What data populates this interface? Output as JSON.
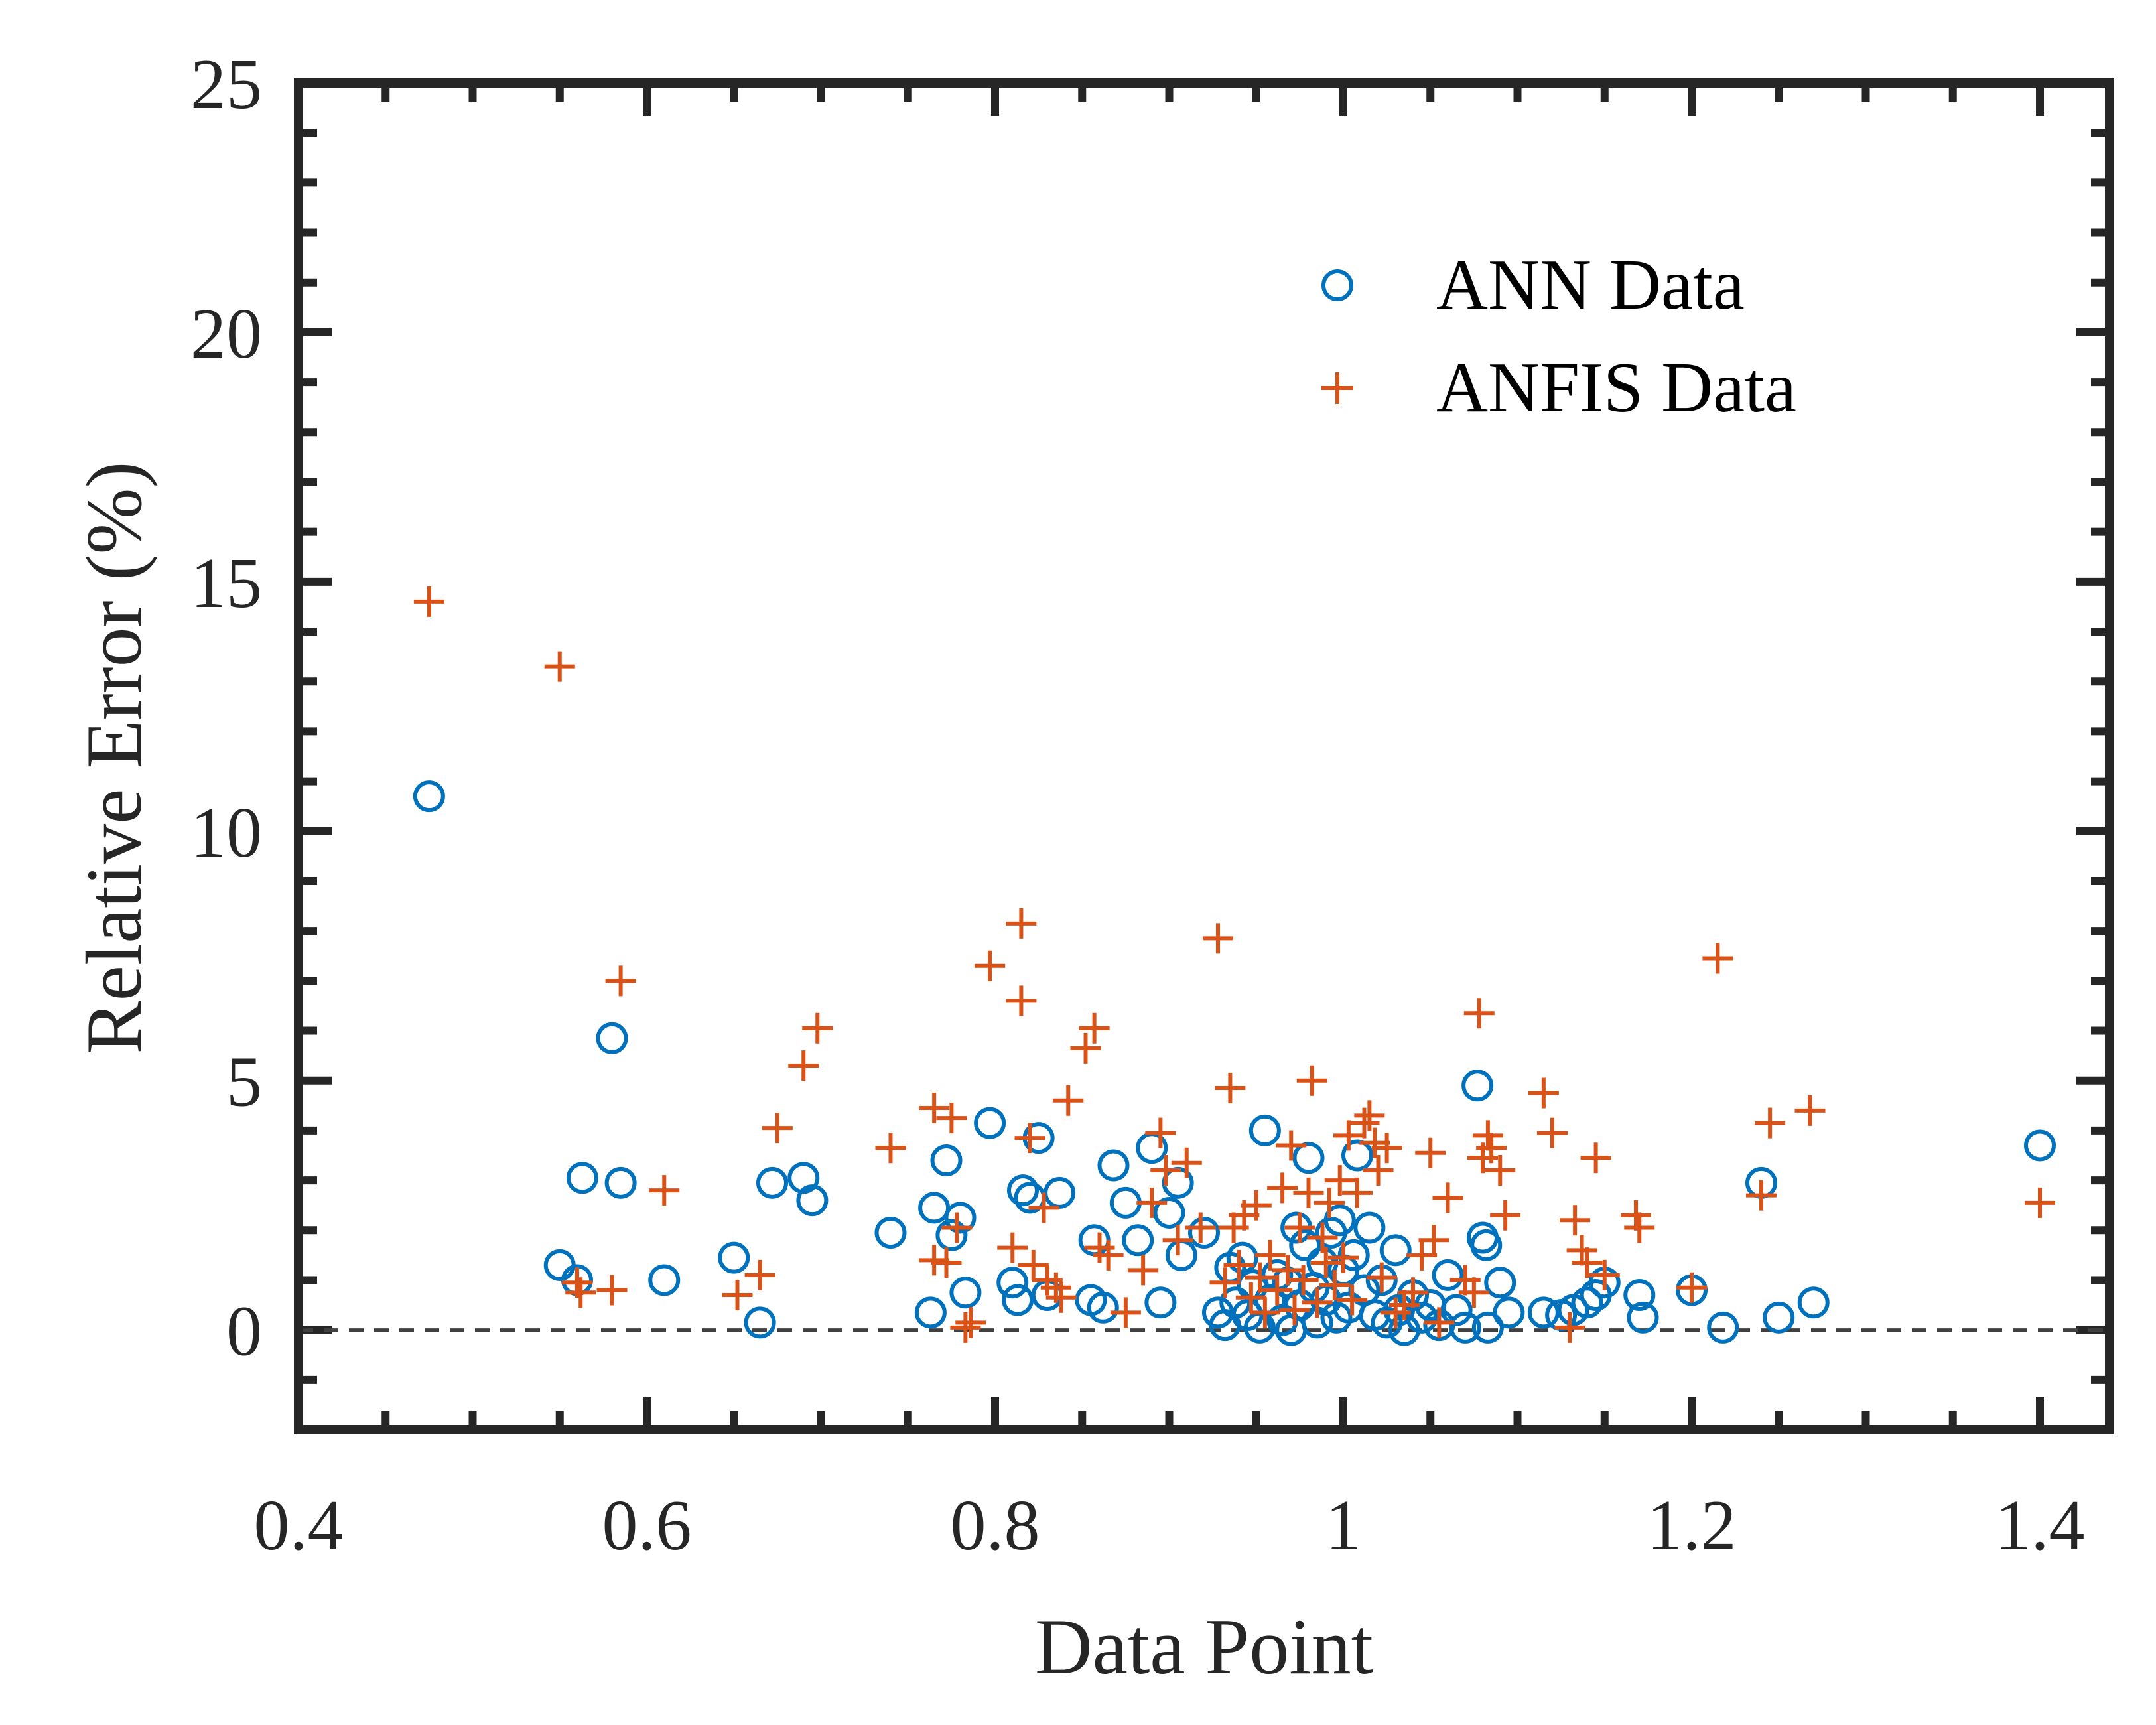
{
  "chart_data": {
    "type": "scatter",
    "xlabel": "Data Point",
    "ylabel": "Relative Error (%)",
    "xlim": [
      0.4,
      1.44
    ],
    "ylim": [
      -2,
      25
    ],
    "x_ticks": [
      0.4,
      0.6,
      0.8,
      1,
      1.2,
      1.4
    ],
    "x_tick_labels": [
      "0.4",
      "0.6",
      "0.8",
      "1",
      "1.2",
      "1.4"
    ],
    "y_ticks": [
      0,
      5,
      10,
      15,
      20,
      25
    ],
    "y_tick_labels": [
      "0",
      "5",
      "10",
      "15",
      "20",
      "25"
    ],
    "reference_line": {
      "y": 0,
      "style": "dashed"
    },
    "grid": false,
    "box": true,
    "legend_position": "top-right",
    "series": [
      {
        "name": "ANN Data",
        "marker": "circle",
        "color": "#0072BD",
        "points": [
          [
            0.475,
            10.7
          ],
          [
            0.55,
            1.3
          ],
          [
            0.56,
            1.0
          ],
          [
            0.563,
            3.05
          ],
          [
            0.58,
            5.85
          ],
          [
            0.585,
            2.95
          ],
          [
            0.61,
            1.0
          ],
          [
            0.65,
            1.45
          ],
          [
            0.665,
            0.15
          ],
          [
            0.672,
            2.95
          ],
          [
            0.69,
            3.05
          ],
          [
            0.695,
            2.6
          ],
          [
            0.74,
            1.95
          ],
          [
            0.763,
            0.35
          ],
          [
            0.765,
            2.45
          ],
          [
            0.772,
            3.4
          ],
          [
            0.775,
            1.9
          ],
          [
            0.78,
            2.25
          ],
          [
            0.783,
            0.75
          ],
          [
            0.797,
            4.15
          ],
          [
            0.81,
            0.95
          ],
          [
            0.813,
            0.6
          ],
          [
            0.816,
            2.8
          ],
          [
            0.82,
            2.65
          ],
          [
            0.825,
            3.85
          ],
          [
            0.83,
            0.7
          ],
          [
            0.837,
            2.75
          ],
          [
            0.855,
            0.6
          ],
          [
            0.857,
            1.8
          ],
          [
            0.862,
            0.45
          ],
          [
            0.868,
            3.3
          ],
          [
            0.875,
            2.55
          ],
          [
            0.882,
            1.8
          ],
          [
            0.89,
            3.65
          ],
          [
            0.895,
            0.55
          ],
          [
            0.9,
            2.35
          ],
          [
            0.905,
            2.95
          ],
          [
            0.907,
            1.5
          ],
          [
            0.92,
            1.95
          ],
          [
            0.928,
            0.35
          ],
          [
            0.932,
            0.1
          ],
          [
            0.935,
            1.25
          ],
          [
            0.938,
            0.55
          ],
          [
            0.942,
            1.45
          ],
          [
            0.945,
            0.3
          ],
          [
            0.948,
            0.9
          ],
          [
            0.952,
            0.05
          ],
          [
            0.955,
            4.0
          ],
          [
            0.958,
            0.6
          ],
          [
            0.962,
            1.1
          ],
          [
            0.965,
            0.2
          ],
          [
            0.968,
            0.95
          ],
          [
            0.97,
            0.0
          ],
          [
            0.973,
            2.05
          ],
          [
            0.975,
            0.5
          ],
          [
            0.978,
            1.7
          ],
          [
            0.98,
            3.45
          ],
          [
            0.983,
            0.85
          ],
          [
            0.985,
            0.15
          ],
          [
            0.988,
            1.35
          ],
          [
            0.99,
            0.6
          ],
          [
            0.993,
            1.95
          ],
          [
            0.996,
            0.25
          ],
          [
            0.998,
            2.2
          ],
          [
            1.0,
            1.2
          ],
          [
            1.003,
            0.45
          ],
          [
            1.006,
            1.5
          ],
          [
            1.008,
            3.5
          ],
          [
            1.012,
            0.8
          ],
          [
            1.015,
            2.05
          ],
          [
            1.018,
            0.3
          ],
          [
            1.022,
            1.0
          ],
          [
            1.025,
            0.15
          ],
          [
            1.03,
            1.6
          ],
          [
            1.032,
            0.4
          ],
          [
            1.035,
            0.0
          ],
          [
            1.04,
            0.7
          ],
          [
            1.045,
            0.25
          ],
          [
            1.05,
            0.5
          ],
          [
            1.055,
            0.1
          ],
          [
            1.06,
            1.1
          ],
          [
            1.065,
            0.4
          ],
          [
            1.07,
            0.05
          ],
          [
            1.077,
            4.9
          ],
          [
            1.08,
            1.85
          ],
          [
            1.082,
            1.7
          ],
          [
            1.083,
            0.05
          ],
          [
            1.09,
            0.95
          ],
          [
            1.095,
            0.35
          ],
          [
            1.115,
            0.35
          ],
          [
            1.125,
            0.3
          ],
          [
            1.132,
            0.4
          ],
          [
            1.14,
            0.55
          ],
          [
            1.145,
            0.7
          ],
          [
            1.15,
            0.95
          ],
          [
            1.17,
            0.7
          ],
          [
            1.172,
            0.25
          ],
          [
            1.2,
            0.8
          ],
          [
            1.218,
            0.05
          ],
          [
            1.24,
            2.95
          ],
          [
            1.25,
            0.25
          ],
          [
            1.27,
            0.55
          ],
          [
            1.4,
            3.7
          ]
        ]
      },
      {
        "name": "ANFIS Data",
        "marker": "plus",
        "color": "#D95319",
        "points": [
          [
            0.475,
            14.6
          ],
          [
            0.55,
            13.3
          ],
          [
            0.56,
            0.95
          ],
          [
            0.562,
            0.75
          ],
          [
            0.58,
            0.8
          ],
          [
            0.585,
            7.0
          ],
          [
            0.61,
            2.8
          ],
          [
            0.652,
            0.7
          ],
          [
            0.665,
            1.1
          ],
          [
            0.675,
            4.05
          ],
          [
            0.69,
            5.3
          ],
          [
            0.698,
            6.05
          ],
          [
            0.74,
            3.65
          ],
          [
            0.765,
            4.45
          ],
          [
            0.765,
            1.4
          ],
          [
            0.772,
            1.35
          ],
          [
            0.775,
            4.25
          ],
          [
            0.778,
            2.05
          ],
          [
            0.783,
            0.05
          ],
          [
            0.786,
            0.15
          ],
          [
            0.797,
            7.3
          ],
          [
            0.81,
            1.65
          ],
          [
            0.815,
            8.15
          ],
          [
            0.815,
            6.6
          ],
          [
            0.82,
            3.85
          ],
          [
            0.822,
            1.3
          ],
          [
            0.828,
            2.45
          ],
          [
            0.83,
            1.0
          ],
          [
            0.835,
            0.85
          ],
          [
            0.838,
            0.65
          ],
          [
            0.842,
            4.6
          ],
          [
            0.852,
            5.65
          ],
          [
            0.857,
            6.05
          ],
          [
            0.86,
            1.65
          ],
          [
            0.865,
            1.5
          ],
          [
            0.875,
            0.35
          ],
          [
            0.885,
            1.2
          ],
          [
            0.89,
            2.55
          ],
          [
            0.895,
            3.95
          ],
          [
            0.898,
            3.2
          ],
          [
            0.905,
            1.8
          ],
          [
            0.91,
            3.35
          ],
          [
            0.918,
            2.05
          ],
          [
            0.928,
            7.85
          ],
          [
            0.932,
            0.95
          ],
          [
            0.935,
            4.85
          ],
          [
            0.937,
            2.05
          ],
          [
            0.94,
            1.3
          ],
          [
            0.943,
            2.3
          ],
          [
            0.947,
            0.65
          ],
          [
            0.95,
            2.5
          ],
          [
            0.952,
            1.05
          ],
          [
            0.955,
            0.35
          ],
          [
            0.958,
            1.5
          ],
          [
            0.962,
            0.8
          ],
          [
            0.965,
            2.85
          ],
          [
            0.968,
            1.2
          ],
          [
            0.97,
            3.7
          ],
          [
            0.972,
            0.4
          ],
          [
            0.975,
            2.05
          ],
          [
            0.977,
            1.0
          ],
          [
            0.98,
            2.75
          ],
          [
            0.982,
            5.0
          ],
          [
            0.985,
            0.55
          ],
          [
            0.988,
            1.85
          ],
          [
            0.99,
            1.35
          ],
          [
            0.992,
            2.55
          ],
          [
            0.995,
            0.9
          ],
          [
            0.998,
            3.0
          ],
          [
            1.0,
            1.45
          ],
          [
            1.003,
            3.9
          ],
          [
            1.005,
            0.6
          ],
          [
            1.008,
            2.75
          ],
          [
            1.012,
            4.15
          ],
          [
            1.015,
            4.3
          ],
          [
            1.018,
            3.75
          ],
          [
            1.02,
            3.2
          ],
          [
            1.022,
            1.05
          ],
          [
            1.025,
            3.65
          ],
          [
            1.03,
            0.35
          ],
          [
            1.035,
            0.5
          ],
          [
            1.04,
            0.75
          ],
          [
            1.045,
            1.5
          ],
          [
            1.05,
            3.55
          ],
          [
            1.052,
            1.8
          ],
          [
            1.055,
            0.15
          ],
          [
            1.06,
            2.65
          ],
          [
            1.07,
            1.0
          ],
          [
            1.075,
            0.75
          ],
          [
            1.078,
            6.35
          ],
          [
            1.08,
            3.45
          ],
          [
            1.083,
            3.9
          ],
          [
            1.085,
            3.65
          ],
          [
            1.09,
            3.2
          ],
          [
            1.093,
            2.3
          ],
          [
            1.115,
            4.75
          ],
          [
            1.12,
            3.95
          ],
          [
            1.13,
            0.05
          ],
          [
            1.133,
            2.2
          ],
          [
            1.137,
            1.6
          ],
          [
            1.14,
            1.35
          ],
          [
            1.145,
            3.45
          ],
          [
            1.15,
            1.1
          ],
          [
            1.168,
            2.3
          ],
          [
            1.17,
            2.05
          ],
          [
            1.2,
            0.85
          ],
          [
            1.215,
            7.45
          ],
          [
            1.24,
            2.7
          ],
          [
            1.245,
            4.15
          ],
          [
            1.268,
            4.4
          ],
          [
            1.4,
            2.55
          ]
        ]
      }
    ]
  }
}
